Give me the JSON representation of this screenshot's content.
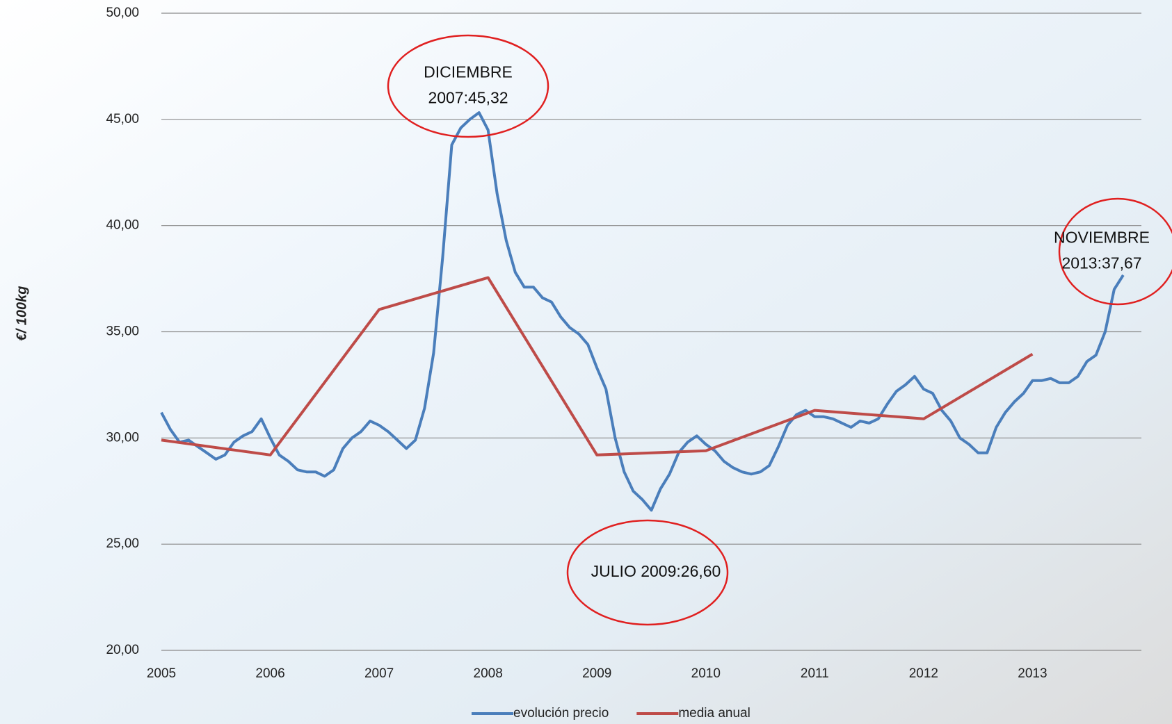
{
  "chart_data": {
    "type": "line",
    "y_label": "€/ 100kg",
    "xlim": [
      2005,
      2014
    ],
    "xticks": [
      2005,
      2006,
      2007,
      2008,
      2009,
      2010,
      2011,
      2012,
      2013
    ],
    "ylim": [
      20,
      50
    ],
    "yticks": [
      {
        "value": 20,
        "label": "20,00"
      },
      {
        "value": 25,
        "label": "25,00"
      },
      {
        "value": 30,
        "label": "30,00"
      },
      {
        "value": 35,
        "label": "35,00"
      },
      {
        "value": 40,
        "label": "40,00"
      },
      {
        "value": 45,
        "label": "45,00"
      },
      {
        "value": 50,
        "label": "50,00"
      }
    ],
    "grid": true,
    "legend": "bottom",
    "series": [
      {
        "name": "evolución precio",
        "color": "#4a7ebb",
        "x": [
          2005,
          2005.083,
          2005.167,
          2005.25,
          2005.333,
          2005.417,
          2005.5,
          2005.583,
          2005.667,
          2005.75,
          2005.833,
          2005.917,
          2006,
          2006.083,
          2006.167,
          2006.25,
          2006.333,
          2006.417,
          2006.5,
          2006.583,
          2006.667,
          2006.75,
          2006.833,
          2006.917,
          2007,
          2007.083,
          2007.167,
          2007.25,
          2007.333,
          2007.417,
          2007.5,
          2007.583,
          2007.667,
          2007.75,
          2007.833,
          2007.917,
          2008,
          2008.083,
          2008.167,
          2008.25,
          2008.333,
          2008.417,
          2008.5,
          2008.583,
          2008.667,
          2008.75,
          2008.833,
          2008.917,
          2009,
          2009.083,
          2009.167,
          2009.25,
          2009.333,
          2009.417,
          2009.5,
          2009.583,
          2009.667,
          2009.75,
          2009.833,
          2009.917,
          2010,
          2010.083,
          2010.167,
          2010.25,
          2010.333,
          2010.417,
          2010.5,
          2010.583,
          2010.667,
          2010.75,
          2010.833,
          2010.917,
          2011,
          2011.083,
          2011.167,
          2011.25,
          2011.333,
          2011.417,
          2011.5,
          2011.583,
          2011.667,
          2011.75,
          2011.833,
          2011.917,
          2012,
          2012.083,
          2012.167,
          2012.25,
          2012.333,
          2012.417,
          2012.5,
          2012.583,
          2012.667,
          2012.75,
          2012.833,
          2012.917,
          2013,
          2013.083,
          2013.167,
          2013.25,
          2013.333,
          2013.417,
          2013.5,
          2013.583,
          2013.667,
          2013.75,
          2013.833
        ],
        "values": [
          31.2,
          30.4,
          29.8,
          29.9,
          29.6,
          29.3,
          29.0,
          29.2,
          29.8,
          30.1,
          30.3,
          30.9,
          30.0,
          29.2,
          28.9,
          28.5,
          28.4,
          28.4,
          28.2,
          28.5,
          29.5,
          30.0,
          30.3,
          30.8,
          30.6,
          30.3,
          29.9,
          29.5,
          29.9,
          31.4,
          34.0,
          38.5,
          43.8,
          44.6,
          45.0,
          45.32,
          44.5,
          41.5,
          39.3,
          37.8,
          37.1,
          37.1,
          36.6,
          36.4,
          35.7,
          35.2,
          34.9,
          34.4,
          33.3,
          32.3,
          30.0,
          28.4,
          27.5,
          27.1,
          26.6,
          27.6,
          28.3,
          29.3,
          29.8,
          30.1,
          29.7,
          29.4,
          28.9,
          28.6,
          28.4,
          28.3,
          28.4,
          28.7,
          29.6,
          30.6,
          31.1,
          31.3,
          31.0,
          31.0,
          30.9,
          30.7,
          30.5,
          30.8,
          30.7,
          30.9,
          31.6,
          32.2,
          32.5,
          32.9,
          32.3,
          32.1,
          31.3,
          30.8,
          30.0,
          29.7,
          29.3,
          29.3,
          30.5,
          31.2,
          31.7,
          32.1,
          32.7,
          32.7,
          32.8,
          32.6,
          32.6,
          32.9,
          33.6,
          33.9,
          35.0,
          37.0,
          37.67
        ]
      },
      {
        "name": "media anual",
        "color": "#be4b48",
        "x": [
          2005,
          2006,
          2007,
          2008,
          2009,
          2010,
          2011,
          2012,
          2013
        ],
        "values": [
          29.9,
          29.2,
          36.05,
          37.55,
          29.2,
          29.4,
          31.3,
          30.9,
          33.95
        ]
      }
    ],
    "annotations": [
      {
        "text": [
          "DICIEMBRE",
          "2007:45,32"
        ],
        "color": "#e02020"
      },
      {
        "text": [
          "JULIO 2009:26,60"
        ],
        "color": "#e02020"
      },
      {
        "text": [
          "NOVIEMBRE",
          "2013:37,67"
        ],
        "color": "#e02020"
      }
    ]
  }
}
